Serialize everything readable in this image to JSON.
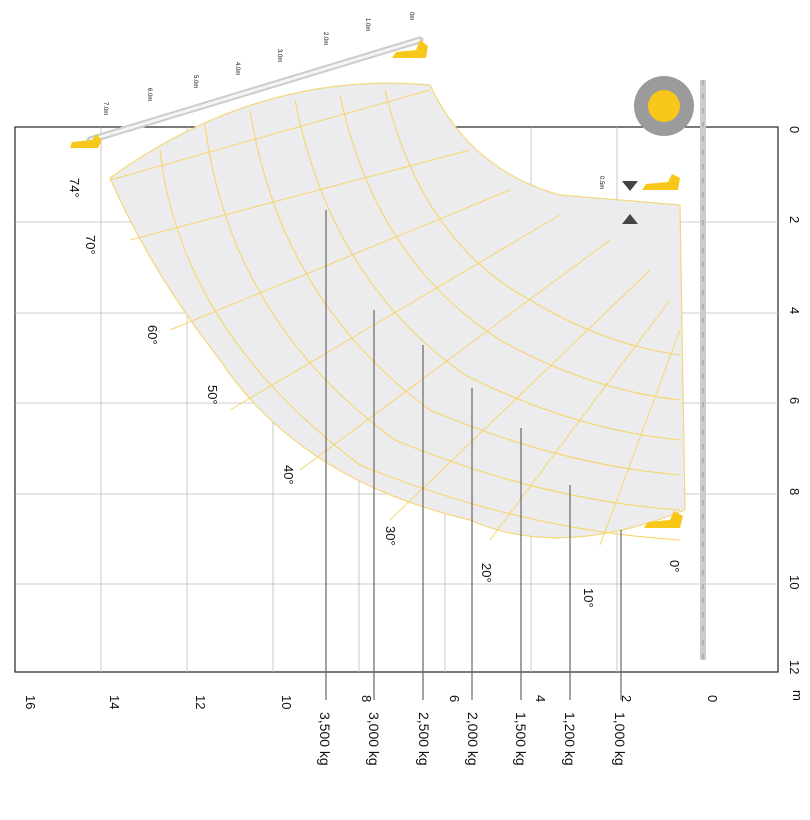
{
  "chart_data": {
    "type": "load_chart",
    "height_axis": {
      "unit": "m",
      "ticks": [
        "16",
        "14",
        "12",
        "10",
        "8",
        "6",
        "4",
        "2",
        "0"
      ]
    },
    "reach_axis": {
      "ticks": [
        "0",
        "2",
        "4",
        "6",
        "8",
        "10",
        "12"
      ]
    },
    "boom_angles": [
      "74°",
      "70°",
      "60°",
      "50°",
      "40°",
      "30°",
      "20°",
      "10°",
      "0°"
    ],
    "boom_extensions": [
      "7.0m",
      "6.0m",
      "5.0m",
      "4.0m",
      "3.0m",
      "2.0m",
      "1.0m",
      "0m"
    ],
    "small_extension_label": "0.5m",
    "load_zones": [
      {
        "label": "3,500 kg"
      },
      {
        "label": "3,000 kg"
      },
      {
        "label": "2,500 kg"
      },
      {
        "label": "2,000 kg"
      },
      {
        "label": "1,500 kg"
      },
      {
        "label": "1,200 kg"
      },
      {
        "label": "1,000 kg"
      }
    ]
  }
}
